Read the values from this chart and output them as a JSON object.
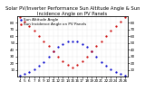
{
  "title": "Solar PV/Inverter Performance Sun Altitude Angle & Sun Incidence Angle on PV Panels",
  "blue_label": "Sun Altitude Angle",
  "red_label": "Sun Incidence Angle on PV Panels",
  "blue_x": [
    0,
    1,
    2,
    3,
    4,
    5,
    6,
    7,
    8,
    9,
    10,
    11,
    12,
    13,
    14,
    15,
    16,
    17,
    18,
    19,
    20,
    21,
    22
  ],
  "blue_y": [
    2,
    4,
    7,
    11,
    16,
    22,
    29,
    37,
    44,
    49,
    52,
    53,
    52,
    49,
    44,
    37,
    29,
    22,
    16,
    11,
    7,
    4,
    2
  ],
  "red_x": [
    0,
    1,
    2,
    3,
    4,
    5,
    6,
    7,
    8,
    9,
    10,
    11,
    12,
    13,
    14,
    15,
    16,
    17,
    18,
    19,
    20,
    21,
    22
  ],
  "red_y": [
    88,
    82,
    75,
    68,
    60,
    53,
    46,
    38,
    30,
    23,
    17,
    14,
    17,
    23,
    30,
    38,
    46,
    53,
    60,
    68,
    75,
    82,
    88
  ],
  "xlim": [
    -0.5,
    22.5
  ],
  "ylim": [
    0,
    90
  ],
  "yticks": [
    10,
    20,
    30,
    40,
    50,
    60,
    70,
    80
  ],
  "xtick_positions": [
    0,
    1,
    2,
    3,
    4,
    5,
    6,
    7,
    8,
    9,
    10,
    11,
    12,
    13,
    14,
    15,
    16,
    17,
    18,
    19,
    20,
    21,
    22
  ],
  "xtick_labels": [
    "4",
    "5",
    "6",
    "7",
    "8",
    "9",
    "10",
    "11",
    "12",
    "13",
    "14",
    "15",
    "16",
    "17",
    "18",
    "19",
    "20",
    "21",
    "22",
    "23",
    "24",
    "25",
    "26"
  ],
  "background_color": "#ffffff",
  "grid_color": "#bbbbbb",
  "blue_color": "#0000cc",
  "red_color": "#cc0000",
  "title_fontsize": 3.8,
  "tick_fontsize": 3.0,
  "legend_fontsize": 3.0,
  "marker_size": 1.2
}
